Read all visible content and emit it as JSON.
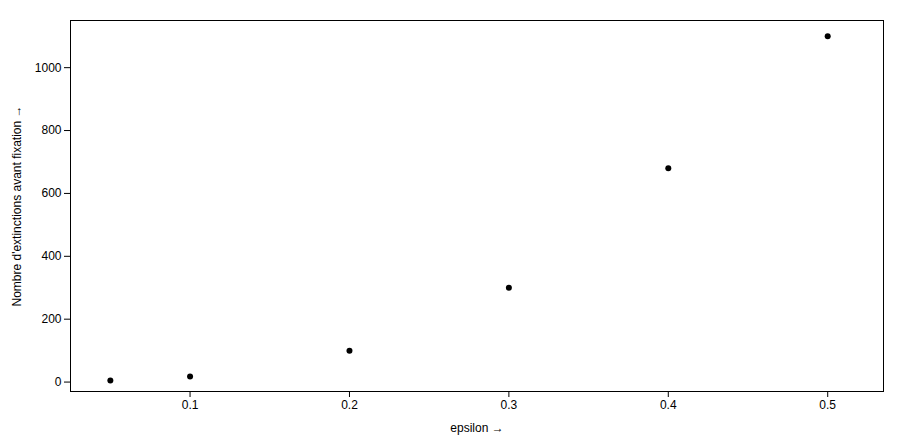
{
  "chart_data": {
    "type": "scatter",
    "x": [
      0.05,
      0.1,
      0.2,
      0.3,
      0.4,
      0.5
    ],
    "values": [
      5,
      18,
      100,
      300,
      680,
      1100
    ],
    "xlabel": "epsilon",
    "ylabel": "Nombre d'extinctions avant fixation",
    "xlim": [
      0.025,
      0.535
    ],
    "ylim": [
      -30,
      1150
    ],
    "xticks": [
      0.1,
      0.2,
      0.3,
      0.4,
      0.5
    ],
    "yticks": [
      0,
      200,
      400,
      600,
      800,
      1000
    ],
    "color": "black",
    "grid": false
  }
}
